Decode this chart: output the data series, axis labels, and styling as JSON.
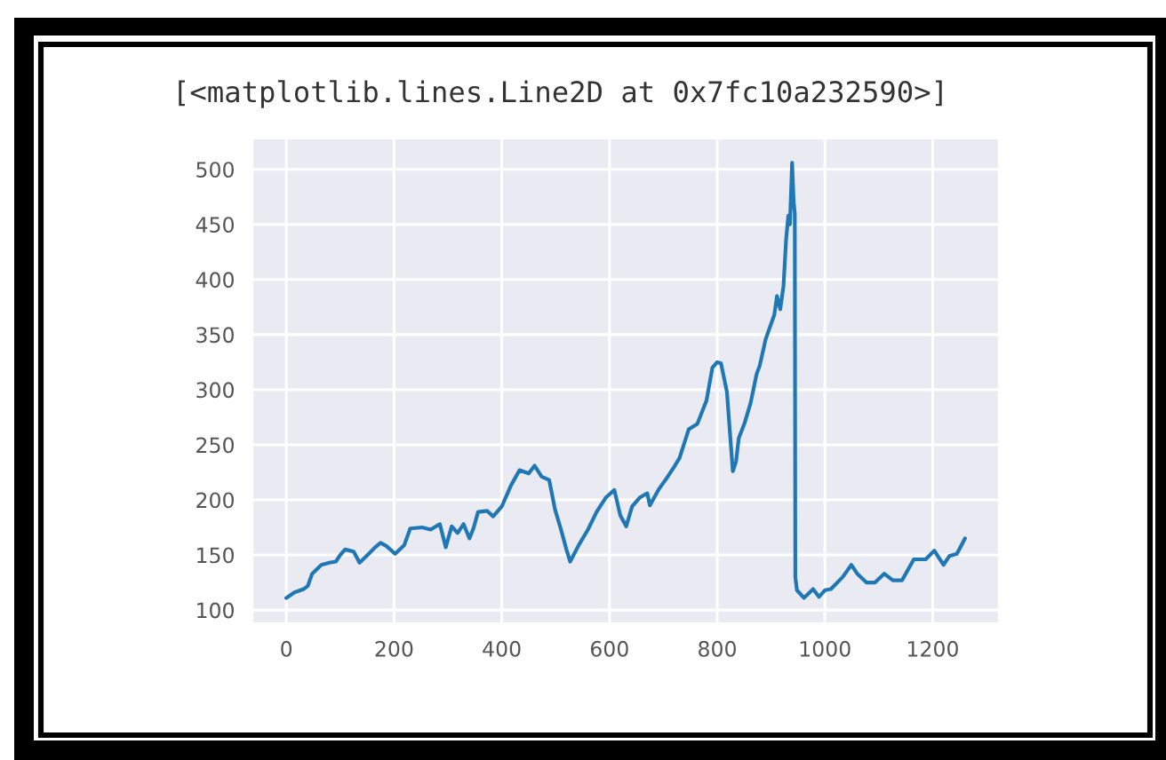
{
  "chart_data": {
    "type": "line",
    "title": "[<matplotlib.lines.Line2D at 0x7fc10a232590>]",
    "x": [
      0,
      15,
      32,
      40,
      48,
      65,
      80,
      92,
      100,
      109,
      125,
      136,
      153,
      165,
      175,
      186,
      202,
      219,
      230,
      252,
      268,
      285,
      296,
      307,
      318,
      329,
      340,
      348,
      356,
      373,
      384,
      400,
      417,
      433,
      450,
      461,
      474,
      488,
      499,
      510,
      520,
      527,
      543,
      560,
      576,
      593,
      609,
      620,
      631,
      642,
      656,
      670,
      675,
      692,
      708,
      720,
      730,
      747,
      763,
      780,
      791,
      800,
      807,
      818,
      829,
      835,
      840,
      851,
      862,
      873,
      879,
      890,
      906,
      911,
      917,
      923,
      928,
      932,
      935,
      939,
      942,
      944,
      945,
      948,
      961,
      978,
      989,
      1000,
      1011,
      1033,
      1049,
      1060,
      1077,
      1093,
      1110,
      1126,
      1143,
      1165,
      1187,
      1203,
      1220,
      1231,
      1245,
      1260
    ],
    "values": [
      111,
      116,
      119,
      122,
      133,
      141,
      143,
      144,
      150,
      155,
      153,
      143,
      151,
      157,
      161,
      158,
      151,
      159,
      174,
      175,
      173,
      178,
      157,
      176,
      170,
      178,
      165,
      175,
      189,
      190,
      185,
      194,
      213,
      227,
      224,
      231,
      221,
      218,
      191,
      173,
      155,
      144,
      159,
      173,
      189,
      202,
      209,
      186,
      176,
      194,
      202,
      206,
      195,
      210,
      221,
      230,
      238,
      264,
      269,
      290,
      320,
      325,
      324,
      298,
      226,
      235,
      256,
      270,
      288,
      314,
      322,
      346,
      368,
      385,
      373,
      394,
      437,
      458,
      450,
      506,
      470,
      460,
      130,
      118,
      111,
      119,
      112,
      118,
      119,
      130,
      141,
      133,
      125,
      125,
      133,
      127,
      127,
      146,
      146,
      154,
      141,
      149,
      151,
      165
    ],
    "color": "#1f77b4",
    "xlim": [
      -63,
      1323
    ],
    "ylim": [
      88,
      528
    ],
    "xticks": [
      0,
      200,
      400,
      600,
      800,
      1000,
      1200
    ],
    "yticks": [
      100,
      150,
      200,
      250,
      300,
      350,
      400,
      450,
      500
    ],
    "grid": true
  }
}
